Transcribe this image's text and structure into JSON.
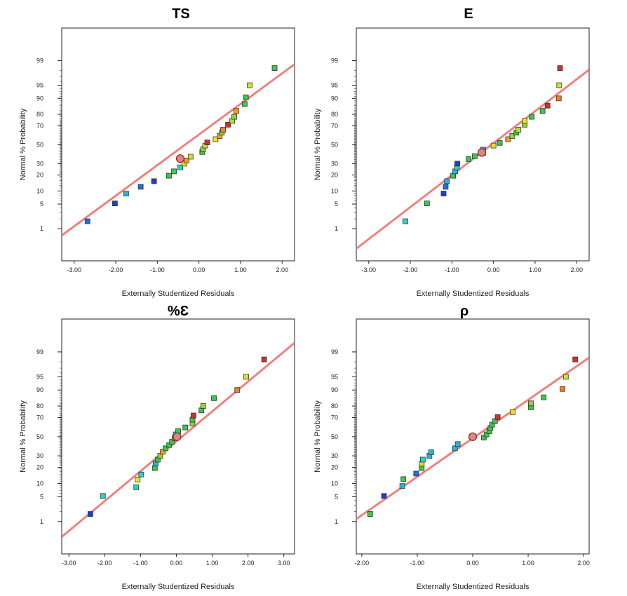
{
  "chart_data": [
    {
      "type": "scatter",
      "title": "TS",
      "xlabel": "Externally Studentized Residuals",
      "ylabel": "Normal % Probability",
      "x_ticks": [
        "-3.00",
        "-2.00",
        "-1.00",
        "0.00",
        "1.00",
        "2.00"
      ],
      "y_ticks": [
        "1",
        "5",
        "10",
        "20",
        "30",
        "50",
        "70",
        "80",
        "90",
        "95",
        "99"
      ],
      "xlim": [
        -3.3,
        2.3
      ],
      "fit_line": {
        "x": [
          -3.3,
          2.3
        ],
        "y": [
          0.6,
          98.7
        ]
      },
      "points": [
        {
          "x": -2.68,
          "y": 1.7,
          "color": "#1f6fe0"
        },
        {
          "x": -2.02,
          "y": 5.2,
          "color": "#1b3fd8"
        },
        {
          "x": -1.75,
          "y": 8.8,
          "color": "#22b8dd"
        },
        {
          "x": -1.4,
          "y": 12.2,
          "color": "#1f6fe0"
        },
        {
          "x": -1.08,
          "y": 15.6,
          "color": "#1b3fd8"
        },
        {
          "x": -0.72,
          "y": 19.5,
          "color": "#3cc84a"
        },
        {
          "x": -0.6,
          "y": 23.0,
          "color": "#3cc84a"
        },
        {
          "x": -0.45,
          "y": 26.5,
          "color": "#2ad6c8"
        },
        {
          "x": -0.35,
          "y": 30.0,
          "color": "#f0e020"
        },
        {
          "x": -0.3,
          "y": 33.0,
          "color": "#f0a020"
        },
        {
          "x": -0.2,
          "y": 37.0,
          "color": "#d4e030"
        },
        {
          "x": 0.08,
          "y": 42.0,
          "color": "#3cc84a"
        },
        {
          "x": 0.1,
          "y": 45.0,
          "color": "#8fd43a"
        },
        {
          "x": 0.15,
          "y": 49.0,
          "color": "#c4e030"
        },
        {
          "x": 0.2,
          "y": 52.5,
          "color": "#d03030"
        },
        {
          "x": 0.4,
          "y": 56.0,
          "color": "#f0e020"
        },
        {
          "x": 0.5,
          "y": 59.5,
          "color": "#f0a020"
        },
        {
          "x": 0.55,
          "y": 63.0,
          "color": "#8fd43a"
        },
        {
          "x": 0.58,
          "y": 66.0,
          "color": "#f08020"
        },
        {
          "x": 0.7,
          "y": 71.0,
          "color": "#d03030"
        },
        {
          "x": 0.8,
          "y": 74.5,
          "color": "#b4e030"
        },
        {
          "x": 0.85,
          "y": 78.0,
          "color": "#8fd43a"
        },
        {
          "x": 0.9,
          "y": 82.5,
          "color": "#f0a020"
        },
        {
          "x": 1.1,
          "y": 87.0,
          "color": "#3cc84a"
        },
        {
          "x": 1.13,
          "y": 90.5,
          "color": "#3cc84a"
        },
        {
          "x": 1.22,
          "y": 95.0,
          "color": "#d4e030"
        },
        {
          "x": 1.82,
          "y": 98.3,
          "color": "#3cc84a"
        }
      ],
      "mean_point": {
        "x": -0.45,
        "y": 35.0
      }
    },
    {
      "type": "scatter",
      "title": "E",
      "xlabel": "Externally Studentized Residuals",
      "ylabel": "Normal % Probability",
      "x_ticks": [
        "-3.00",
        "-2.00",
        "-1.00",
        "0.00",
        "1.00",
        "2.00"
      ],
      "y_ticks": [
        "1",
        "5",
        "10",
        "20",
        "30",
        "50",
        "70",
        "80",
        "90",
        "95",
        "99"
      ],
      "xlim": [
        -3.3,
        2.3
      ],
      "fit_line": {
        "x": [
          -3.3,
          2.3
        ],
        "y": [
          0.2,
          98.1
        ]
      },
      "points": [
        {
          "x": -2.12,
          "y": 1.7,
          "color": "#2ad6c8"
        },
        {
          "x": -1.6,
          "y": 5.2,
          "color": "#3cc84a"
        },
        {
          "x": -1.2,
          "y": 8.8,
          "color": "#1b3fd8"
        },
        {
          "x": -1.15,
          "y": 12.2,
          "color": "#1f6fe0"
        },
        {
          "x": -1.12,
          "y": 15.6,
          "color": "#22b8dd"
        },
        {
          "x": -0.97,
          "y": 19.5,
          "color": "#3cc84a"
        },
        {
          "x": -0.92,
          "y": 23.0,
          "color": "#22b8dd"
        },
        {
          "x": -0.88,
          "y": 26.5,
          "color": "#2ad6c8"
        },
        {
          "x": -0.87,
          "y": 30.0,
          "color": "#1b3fd8"
        },
        {
          "x": -0.6,
          "y": 34.5,
          "color": "#3cc84a"
        },
        {
          "x": -0.45,
          "y": 37.5,
          "color": "#3cc84a"
        },
        {
          "x": -0.25,
          "y": 41.0,
          "color": "#2ad6c8"
        },
        {
          "x": -0.25,
          "y": 44.5,
          "color": "#22b8dd"
        },
        {
          "x": 0.0,
          "y": 49.0,
          "color": "#f0e020"
        },
        {
          "x": 0.15,
          "y": 52.0,
          "color": "#3cc84a"
        },
        {
          "x": 0.35,
          "y": 56.0,
          "color": "#f0a020"
        },
        {
          "x": 0.45,
          "y": 59.5,
          "color": "#8fd43a"
        },
        {
          "x": 0.55,
          "y": 63.0,
          "color": "#3cc84a"
        },
        {
          "x": 0.6,
          "y": 66.0,
          "color": "#b4e030"
        },
        {
          "x": 0.75,
          "y": 71.0,
          "color": "#8fd43a"
        },
        {
          "x": 0.75,
          "y": 74.5,
          "color": "#f0e020"
        },
        {
          "x": 0.92,
          "y": 78.0,
          "color": "#3cc84a"
        },
        {
          "x": 1.18,
          "y": 82.5,
          "color": "#3cc84a"
        },
        {
          "x": 1.3,
          "y": 86.0,
          "color": "#d03030"
        },
        {
          "x": 1.57,
          "y": 90.0,
          "color": "#f08020"
        },
        {
          "x": 1.58,
          "y": 95.0,
          "color": "#d4e030"
        },
        {
          "x": 1.6,
          "y": 98.3,
          "color": "#d03030"
        }
      ],
      "mean_point": {
        "x": -0.28,
        "y": 41.5
      }
    },
    {
      "type": "scatter",
      "title": "%Ɛ",
      "xlabel": "Externally Studentized Residuals",
      "ylabel": "Normal % Probability",
      "x_ticks": [
        "-3.00",
        "-2.00",
        "-1.00",
        "0.00",
        "1.00",
        "2.00",
        "3.00"
      ],
      "y_ticks": [
        "1",
        "5",
        "10",
        "20",
        "30",
        "50",
        "70",
        "80",
        "90",
        "95",
        "99"
      ],
      "xlim": [
        -3.2,
        3.3
      ],
      "fit_line": {
        "x": [
          -3.2,
          3.3
        ],
        "y": [
          0.3,
          99.5
        ]
      },
      "points": [
        {
          "x": -2.4,
          "y": 1.7,
          "color": "#1b3fd8"
        },
        {
          "x": -2.05,
          "y": 5.2,
          "color": "#2ad6c8"
        },
        {
          "x": -1.12,
          "y": 8.3,
          "color": "#2ad6c8"
        },
        {
          "x": -1.08,
          "y": 12.0,
          "color": "#f0e020"
        },
        {
          "x": -0.98,
          "y": 15.0,
          "color": "#2ad6c8"
        },
        {
          "x": -0.6,
          "y": 19.5,
          "color": "#3cc84a"
        },
        {
          "x": -0.58,
          "y": 23.0,
          "color": "#22b8dd"
        },
        {
          "x": -0.52,
          "y": 26.5,
          "color": "#3cc84a"
        },
        {
          "x": -0.45,
          "y": 30.0,
          "color": "#8fd43a"
        },
        {
          "x": -0.38,
          "y": 34.0,
          "color": "#f0a020"
        },
        {
          "x": -0.3,
          "y": 37.5,
          "color": "#3cc84a"
        },
        {
          "x": -0.2,
          "y": 41.0,
          "color": "#3cc84a"
        },
        {
          "x": -0.12,
          "y": 44.5,
          "color": "#3cc84a"
        },
        {
          "x": -0.05,
          "y": 48.5,
          "color": "#3cc84a"
        },
        {
          "x": -0.02,
          "y": 52.5,
          "color": "#2ad6c8"
        },
        {
          "x": 0.05,
          "y": 56.0,
          "color": "#3cc84a"
        },
        {
          "x": 0.25,
          "y": 60.0,
          "color": "#3cc84a"
        },
        {
          "x": 0.45,
          "y": 64.0,
          "color": "#8fd43a"
        },
        {
          "x": 0.45,
          "y": 68.0,
          "color": "#3cc84a"
        },
        {
          "x": 0.48,
          "y": 72.0,
          "color": "#d03030"
        },
        {
          "x": 0.7,
          "y": 76.5,
          "color": "#3cc84a"
        },
        {
          "x": 0.75,
          "y": 80.0,
          "color": "#8fd43a"
        },
        {
          "x": 1.05,
          "y": 85.5,
          "color": "#3cc84a"
        },
        {
          "x": 1.7,
          "y": 90.0,
          "color": "#f08020"
        },
        {
          "x": 1.95,
          "y": 95.0,
          "color": "#d4e030"
        },
        {
          "x": 2.45,
          "y": 98.3,
          "color": "#d03030"
        }
      ],
      "mean_point": {
        "x": 0.02,
        "y": 50.0
      }
    },
    {
      "type": "scatter",
      "title": "ρ",
      "xlabel": "Externally Studentized Residuals",
      "ylabel": "Normal % Probability",
      "x_ticks": [
        "-2.00",
        "-1.00",
        "0.00",
        "1.00",
        "2.00"
      ],
      "y_ticks": [
        "1",
        "5",
        "10",
        "20",
        "30",
        "50",
        "70",
        "80",
        "90",
        "95",
        "99"
      ],
      "xlim": [
        -2.1,
        2.1
      ],
      "fit_line": {
        "x": [
          -2.1,
          2.1
        ],
        "y": [
          1.2,
          98.5
        ]
      },
      "points": [
        {
          "x": -1.85,
          "y": 1.7,
          "color": "#3cc84a"
        },
        {
          "x": -1.6,
          "y": 5.2,
          "color": "#1b3fd8"
        },
        {
          "x": -1.27,
          "y": 8.8,
          "color": "#22b8dd"
        },
        {
          "x": -1.25,
          "y": 12.2,
          "color": "#3cc84a"
        },
        {
          "x": -1.02,
          "y": 15.6,
          "color": "#1f6fe0"
        },
        {
          "x": -0.92,
          "y": 19.5,
          "color": "#3cc84a"
        },
        {
          "x": -0.92,
          "y": 23.0,
          "color": "#d4e030"
        },
        {
          "x": -0.9,
          "y": 26.5,
          "color": "#2ad6c8"
        },
        {
          "x": -0.78,
          "y": 30.0,
          "color": "#22b8dd"
        },
        {
          "x": -0.75,
          "y": 33.5,
          "color": "#22b8dd"
        },
        {
          "x": -0.32,
          "y": 37.5,
          "color": "#22b8dd"
        },
        {
          "x": -0.27,
          "y": 42.0,
          "color": "#22b8dd"
        },
        {
          "x": 0.2,
          "y": 49.0,
          "color": "#3cc84a"
        },
        {
          "x": 0.25,
          "y": 52.5,
          "color": "#3cc84a"
        },
        {
          "x": 0.3,
          "y": 56.0,
          "color": "#3cc84a"
        },
        {
          "x": 0.32,
          "y": 59.5,
          "color": "#3cc84a"
        },
        {
          "x": 0.35,
          "y": 63.0,
          "color": "#3cc84a"
        },
        {
          "x": 0.4,
          "y": 66.5,
          "color": "#3cc84a"
        },
        {
          "x": 0.45,
          "y": 70.5,
          "color": "#d03030"
        },
        {
          "x": 0.72,
          "y": 75.0,
          "color": "#f0e020"
        },
        {
          "x": 1.05,
          "y": 79.0,
          "color": "#3cc84a"
        },
        {
          "x": 1.05,
          "y": 82.0,
          "color": "#8fd43a"
        },
        {
          "x": 1.28,
          "y": 86.0,
          "color": "#3cc84a"
        },
        {
          "x": 1.62,
          "y": 90.5,
          "color": "#f08020"
        },
        {
          "x": 1.68,
          "y": 95.0,
          "color": "#d4e030"
        },
        {
          "x": 1.85,
          "y": 98.3,
          "color": "#d03030"
        }
      ],
      "mean_point": {
        "x": 0.0,
        "y": 50.0
      }
    }
  ],
  "colors": {
    "fit_line": "#f08080",
    "mean_point_fill": "#d9868a",
    "mean_point_stroke": "#8a2020",
    "frame": "#222222"
  }
}
